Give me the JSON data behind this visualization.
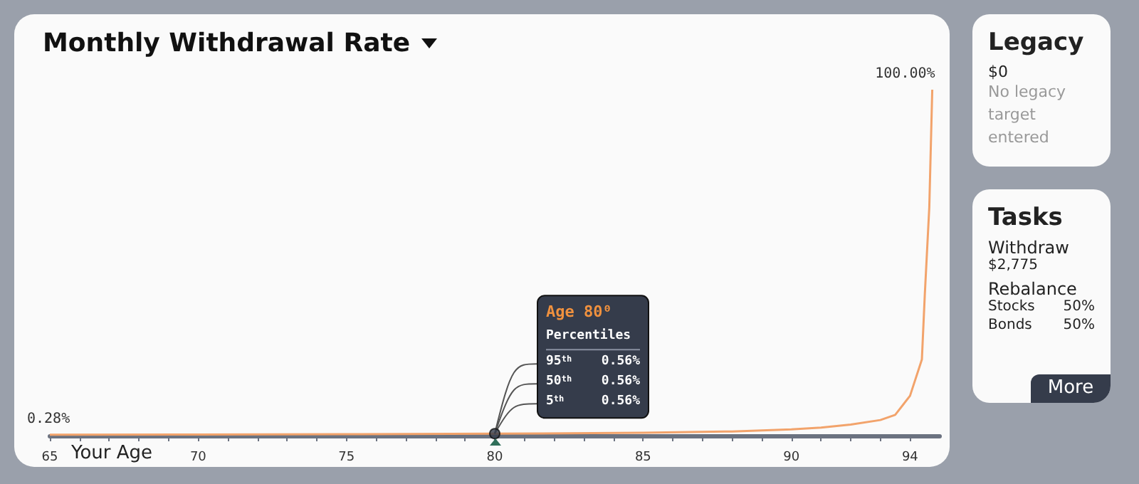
{
  "chart_data": [
    {
      "type": "line",
      "title": "Monthly Withdrawal Rate",
      "xlabel": "Your Age",
      "series": [
        {
          "type": "line",
          "color": "#f2a36b",
          "marker": "none",
          "line_style": "solid",
          "x": [
            65,
            70,
            75,
            80,
            85,
            88,
            90,
            91,
            92,
            93,
            93.5,
            94,
            94.4,
            94.5,
            94.65,
            94.75
          ],
          "values": [
            0.28,
            0.33,
            0.42,
            0.56,
            0.8,
            1.2,
            1.8,
            2.3,
            3.2,
            4.5,
            6,
            11.5,
            22,
            41,
            66,
            100
          ],
          "value_labels": [
            "0.28%",
            null,
            null,
            null,
            null,
            null,
            null,
            null,
            null,
            null,
            null,
            null,
            null,
            null,
            null,
            "100.00%"
          ]
        },
        {
          "type": "scatter",
          "color": "#353c4b",
          "marker": "circle",
          "x": [
            80
          ],
          "values": [
            0.56
          ]
        }
      ],
      "xlim": [
        65,
        95
      ],
      "xticks": [
        65,
        {
          "value": 66,
          "label": null
        },
        {
          "value": 67,
          "label": null
        },
        {
          "value": 68,
          "label": null
        },
        {
          "value": 69,
          "label": null
        },
        70,
        {
          "value": 71,
          "label": null
        },
        {
          "value": 72,
          "label": null
        },
        {
          "value": 73,
          "label": null
        },
        {
          "value": 74,
          "label": null
        },
        75,
        {
          "value": 76,
          "label": null
        },
        {
          "value": 77,
          "label": null
        },
        {
          "value": 78,
          "label": null
        },
        {
          "value": 79,
          "label": null
        },
        80,
        {
          "value": 81,
          "label": null
        },
        {
          "value": 82,
          "label": null
        },
        {
          "value": 83,
          "label": null
        },
        {
          "value": 84,
          "label": null
        },
        85,
        {
          "value": 86,
          "label": null
        },
        {
          "value": 87,
          "label": null
        },
        {
          "value": 88,
          "label": null
        },
        {
          "value": 89,
          "label": null
        },
        90,
        {
          "value": 91,
          "label": null
        },
        {
          "value": 92,
          "label": null
        },
        {
          "value": 93,
          "label": null
        },
        94
      ],
      "tick_labels": "x",
      "grid": false,
      "annotations": [
        "Age 80⁰",
        "Percentiles",
        "95$^{th}$",
        "0.56%",
        "50$^{th}$",
        "0.56%",
        "5$^{th}$",
        "0.56%"
      ]
    },
    {
      "type": "other",
      "title": "Legacy",
      "annotations": [
        "$0",
        "No legacy target entered"
      ]
    },
    {
      "type": "other",
      "title": "Tasks",
      "annotations": [
        "Withdraw",
        "$2,775",
        "Rebalance",
        "Stocks",
        "50%",
        "Bonds",
        "50%",
        "More"
      ]
    }
  ]
}
